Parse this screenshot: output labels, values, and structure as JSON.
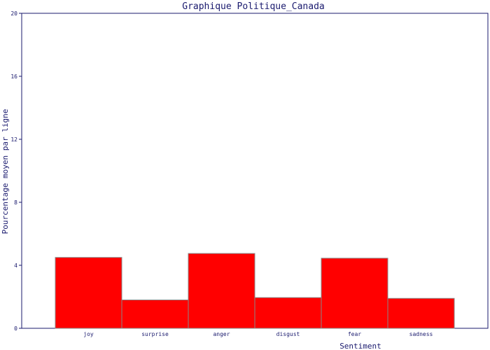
{
  "chart_data": {
    "type": "bar",
    "title": "Graphique Politique_Canada",
    "xlabel": "Sentiment",
    "ylabel": "Pourcentage moyen par ligne",
    "categories": [
      "joy",
      "surprise",
      "anger",
      "disgust",
      "fear",
      "sadness"
    ],
    "values": [
      4.5,
      1.8,
      4.75,
      1.95,
      4.45,
      1.9
    ],
    "ylim": [
      0,
      20
    ],
    "yticks": [
      0,
      4,
      8,
      12,
      16,
      20
    ],
    "grid": false,
    "bar_color": "#ff0000",
    "bar_stroke": "#888888",
    "axis_color": "#1a1a6e"
  }
}
